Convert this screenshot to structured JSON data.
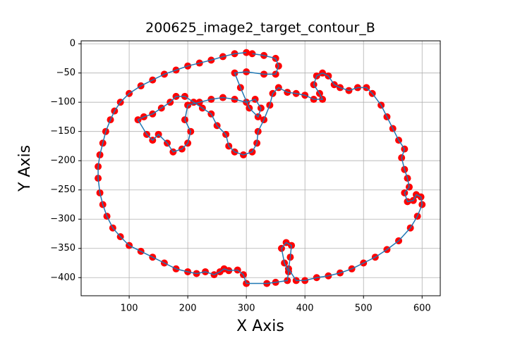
{
  "chart_data": {
    "type": "line",
    "title": "200625_image2_target_contour_B",
    "x_label": "X Axis",
    "y_label": "Y Axis",
    "x": [
      300,
      280,
      260,
      240,
      220,
      200,
      180,
      160,
      140,
      120,
      100,
      85,
      75,
      68,
      60,
      55,
      50,
      47,
      47,
      50,
      55,
      62,
      72,
      85,
      100,
      120,
      140,
      160,
      180,
      200,
      215,
      230,
      245,
      255,
      262,
      270,
      285,
      295,
      300,
      335,
      350,
      370,
      372,
      365,
      360,
      368,
      377,
      375,
      372,
      385,
      400,
      420,
      440,
      460,
      480,
      500,
      520,
      540,
      560,
      580,
      592,
      600,
      598,
      590,
      585,
      575,
      570,
      578,
      575,
      570,
      565,
      570,
      560,
      550,
      540,
      530,
      515,
      505,
      490,
      475,
      460,
      450,
      440,
      430,
      420,
      415,
      425,
      430,
      415,
      400,
      385,
      370,
      355,
      345,
      340,
      330,
      320,
      318,
      310,
      295,
      280,
      270,
      265,
      250,
      240,
      225,
      210,
      195,
      180,
      170,
      155,
      140,
      125,
      115,
      130,
      140,
      150,
      165,
      175,
      190,
      200,
      205,
      195,
      200,
      220,
      240,
      260,
      280,
      300,
      315,
      325,
      320,
      305,
      290,
      280,
      300,
      330,
      350,
      355,
      350,
      330,
      310
    ],
    "series": [
      {
        "color": "#1f77b4",
        "marker_color": "#ff0000",
        "values": [
          -15,
          -17,
          -22,
          -28,
          -33,
          -38,
          -45,
          -52,
          -62,
          -72,
          -85,
          -100,
          -115,
          -130,
          -150,
          -170,
          -190,
          -210,
          -230,
          -255,
          -275,
          -295,
          -315,
          -330,
          -345,
          -355,
          -365,
          -375,
          -385,
          -390,
          -393,
          -390,
          -395,
          -390,
          -385,
          -388,
          -387,
          -395,
          -410,
          -410,
          -408,
          -405,
          -390,
          -375,
          -350,
          -340,
          -345,
          -365,
          -385,
          -405,
          -405,
          -400,
          -397,
          -392,
          -385,
          -375,
          -365,
          -352,
          -337,
          -315,
          -295,
          -275,
          -262,
          -258,
          -268,
          -270,
          -255,
          -245,
          -230,
          -215,
          -195,
          -180,
          -165,
          -145,
          -125,
          -105,
          -85,
          -75,
          -75,
          -80,
          -75,
          -70,
          -55,
          -50,
          -55,
          -70,
          -85,
          -95,
          -95,
          -88,
          -85,
          -83,
          -75,
          -85,
          -105,
          -130,
          -150,
          -170,
          -185,
          -190,
          -185,
          -175,
          -155,
          -140,
          -120,
          -110,
          -100,
          -90,
          -90,
          -100,
          -110,
          -120,
          -125,
          -130,
          -155,
          -165,
          -155,
          -170,
          -185,
          -180,
          -170,
          -150,
          -130,
          -105,
          -100,
          -95,
          -92,
          -95,
          -100,
          -95,
          -110,
          -125,
          -110,
          -75,
          -50,
          -48,
          -52,
          -52,
          -38,
          -25,
          -20,
          -17
        ]
      }
    ],
    "xlim": [
      18,
      631
    ],
    "ylim": [
      -431,
      5
    ],
    "xticks": [
      100,
      200,
      300,
      400,
      500,
      600
    ],
    "yticks": [
      0,
      {
        "value": -50,
        "label": "−50"
      },
      {
        "value": -100,
        "label": "−100"
      },
      {
        "value": -150,
        "label": "−150"
      },
      {
        "value": -200,
        "label": "−200"
      },
      {
        "value": -250,
        "label": "−250"
      },
      {
        "value": -300,
        "label": "−300"
      },
      {
        "value": -350,
        "label": "−350"
      },
      {
        "value": -400,
        "label": "−400"
      }
    ],
    "grid": true
  }
}
